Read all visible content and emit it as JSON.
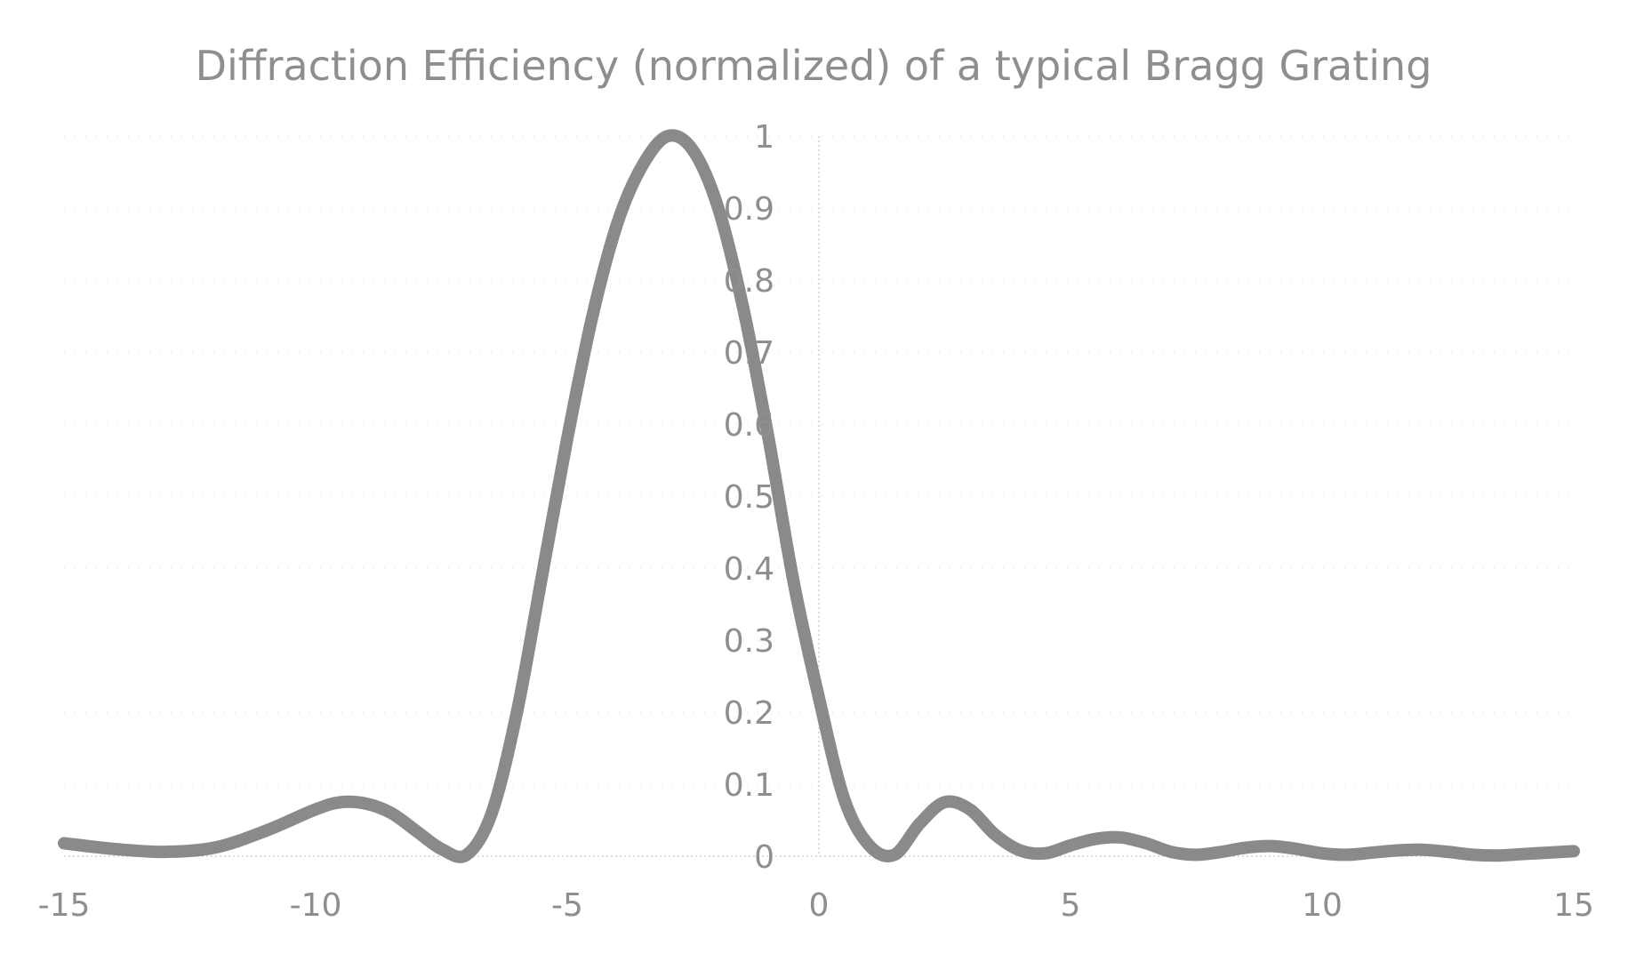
{
  "chart_data": {
    "type": "line",
    "title": "Diffraction Efficiency (normalized) of a typical Bragg Grating",
    "xlabel": "",
    "ylabel": "",
    "xlim": [
      -15,
      15
    ],
    "ylim": [
      0,
      1
    ],
    "x_ticks": [
      -15,
      -10,
      -5,
      0,
      5,
      10,
      15
    ],
    "x_tick_labels": [
      "-15",
      "-10",
      "-5",
      "0",
      "5",
      "10",
      "15"
    ],
    "y_ticks": [
      0,
      0.1,
      0.2,
      0.3,
      0.4,
      0.5,
      0.6,
      0.7,
      0.8,
      0.9,
      1
    ],
    "y_tick_labels": [
      "0",
      "0.1",
      "0.2",
      "0.3",
      "0.4",
      "0.5",
      "0.6",
      "0.7",
      "0.8",
      "0.9",
      "1"
    ],
    "grid": true,
    "legend": "none",
    "series": [
      {
        "name": "Diffraction Efficiency",
        "color": "#8a8a8a",
        "x": [
          -15,
          -14,
          -13,
          -12,
          -11,
          -10,
          -9.5,
          -9,
          -8.5,
          -8,
          -7.5,
          -7,
          -6.5,
          -6,
          -5.5,
          -5,
          -4.5,
          -4,
          -3.5,
          -3,
          -2.5,
          -2,
          -1.5,
          -1,
          -0.5,
          0,
          0.5,
          1,
          1.5,
          2,
          2.5,
          3,
          3.5,
          4,
          4.5,
          5,
          5.5,
          6,
          6.5,
          7,
          7.5,
          8,
          8.5,
          9,
          9.5,
          10,
          10.5,
          11,
          11.5,
          12,
          12.5,
          13,
          13.5,
          14,
          14.5,
          15
        ],
        "y": [
          0.018,
          0.01,
          0.006,
          0.012,
          0.035,
          0.065,
          0.075,
          0.073,
          0.06,
          0.035,
          0.01,
          0.002,
          0.06,
          0.2,
          0.39,
          0.58,
          0.75,
          0.88,
          0.96,
          1.0,
          0.98,
          0.9,
          0.76,
          0.58,
          0.38,
          0.22,
          0.08,
          0.015,
          0.002,
          0.045,
          0.075,
          0.065,
          0.03,
          0.008,
          0.004,
          0.015,
          0.024,
          0.026,
          0.018,
          0.006,
          0.002,
          0.006,
          0.012,
          0.014,
          0.01,
          0.004,
          0.002,
          0.005,
          0.008,
          0.009,
          0.006,
          0.002,
          0.001,
          0.003,
          0.005,
          0.007
        ]
      }
    ]
  }
}
